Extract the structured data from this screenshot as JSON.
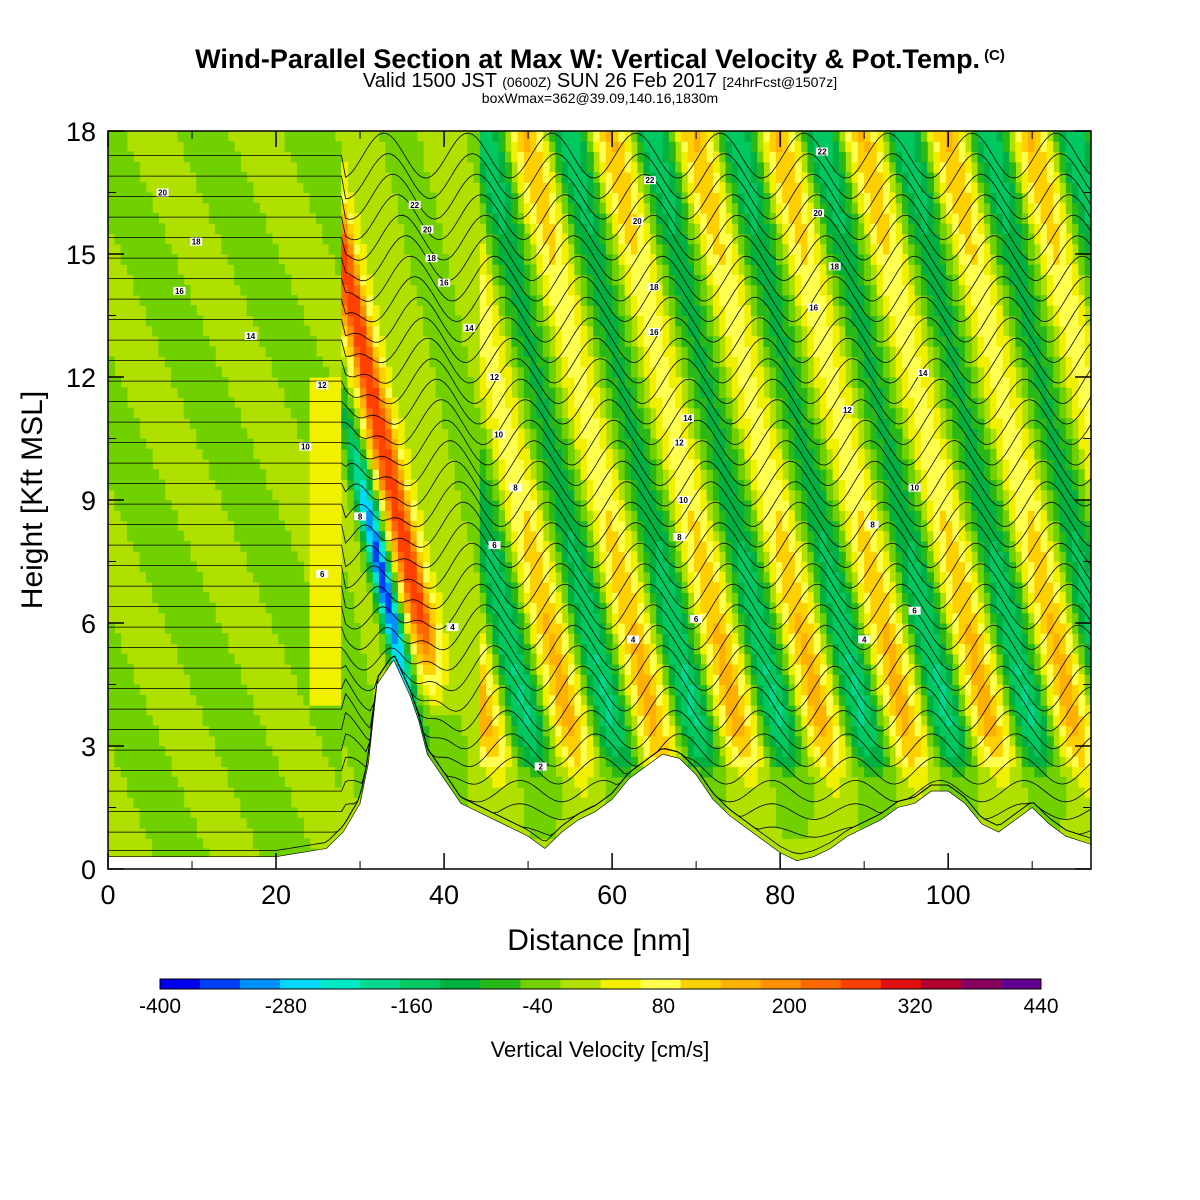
{
  "header": {
    "title": "Wind-Parallel Section at Max W: Vertical Velocity & Pot.Temp.",
    "copyright": "(C)",
    "valid_prefix": "Valid 1500 JST",
    "valid_zulu": "(0600Z)",
    "valid_date": "SUN 26 Feb 2017",
    "forecast": "[24hrFcst@1507z]",
    "box_info": "boxWmax=362@39.09,140.16,1830m"
  },
  "colorbar": {
    "title": "Vertical Velocity [cm/s]",
    "labels": [
      "-400",
      "-280",
      "-160",
      "-40",
      "80",
      "200",
      "320",
      "440"
    ],
    "colors": [
      "#0000f0",
      "#0040ff",
      "#0090ff",
      "#00d8ff",
      "#00e8c8",
      "#00d890",
      "#00c860",
      "#00b040",
      "#28b818",
      "#70d000",
      "#b0e000",
      "#f0f000",
      "#ffff50",
      "#ffd000",
      "#ffb000",
      "#ff9000",
      "#ff6800",
      "#ff4000",
      "#e01010",
      "#b00030",
      "#880060",
      "#600090"
    ]
  },
  "chart_data": {
    "type": "heatmap",
    "xlabel": "Distance [nm]",
    "ylabel": "Height [Kft MSL]",
    "xlim": [
      0,
      117
    ],
    "ylim": [
      0,
      18
    ],
    "x_ticks": [
      "0",
      "20",
      "40",
      "60",
      "80",
      "100"
    ],
    "y_ticks": [
      "0",
      "3",
      "6",
      "9",
      "12",
      "15",
      "18"
    ],
    "field": "Vertical Velocity (cm/s), filled contours",
    "contour_field": "Potential temperature (C), line contours",
    "wave_crests_x_nm": [
      38,
      47,
      56,
      66,
      76,
      86,
      96,
      106
    ],
    "max_updraft_cm_s": 362,
    "min_downdraft_cm_s": -380,
    "terrain_profile": {
      "x": [
        0,
        20,
        26,
        28,
        30,
        31,
        32,
        34,
        36,
        37,
        38,
        40,
        42,
        44,
        46,
        48,
        50,
        52,
        54,
        56,
        58,
        60,
        62,
        64,
        66,
        68,
        70,
        72,
        74,
        76,
        78,
        80,
        82,
        84,
        86,
        88,
        90,
        92,
        94,
        96,
        98,
        100,
        102,
        104,
        106,
        108,
        110,
        112,
        114,
        117
      ],
      "y": [
        0.3,
        0.3,
        0.5,
        0.9,
        1.6,
        2.6,
        4.5,
        5.1,
        4.2,
        3.6,
        2.8,
        2.2,
        1.6,
        1.4,
        1.2,
        1.0,
        0.8,
        0.5,
        0.9,
        1.2,
        1.4,
        1.7,
        2.2,
        2.5,
        2.8,
        2.7,
        2.3,
        1.7,
        1.3,
        1.0,
        0.7,
        0.4,
        0.2,
        0.3,
        0.5,
        0.8,
        1.0,
        1.2,
        1.5,
        1.6,
        1.9,
        1.9,
        1.6,
        1.1,
        0.9,
        1.2,
        1.5,
        1.1,
        0.8,
        0.6
      ]
    },
    "contour_labels": [
      {
        "text": "20",
        "x": 6.5,
        "y": 16.5
      },
      {
        "text": "18",
        "x": 10.5,
        "y": 15.3
      },
      {
        "text": "16",
        "x": 8.5,
        "y": 14.1
      },
      {
        "text": "14",
        "x": 17.0,
        "y": 13.0
      },
      {
        "text": "12",
        "x": 25.5,
        "y": 11.8
      },
      {
        "text": "10",
        "x": 23.5,
        "y": 10.3
      },
      {
        "text": "8",
        "x": 30.0,
        "y": 8.6
      },
      {
        "text": "6",
        "x": 25.5,
        "y": 7.2
      },
      {
        "text": "4",
        "x": 41.0,
        "y": 5.9
      },
      {
        "text": "22",
        "x": 36.5,
        "y": 16.2
      },
      {
        "text": "20",
        "x": 38.0,
        "y": 15.6
      },
      {
        "text": "18",
        "x": 38.5,
        "y": 14.9
      },
      {
        "text": "16",
        "x": 40.0,
        "y": 14.3
      },
      {
        "text": "14",
        "x": 43.0,
        "y": 13.2
      },
      {
        "text": "12",
        "x": 46.0,
        "y": 12.0
      },
      {
        "text": "10",
        "x": 46.5,
        "y": 10.6
      },
      {
        "text": "8",
        "x": 48.5,
        "y": 9.3
      },
      {
        "text": "6",
        "x": 46.0,
        "y": 7.9
      },
      {
        "text": "4",
        "x": 62.5,
        "y": 5.6
      },
      {
        "text": "2",
        "x": 51.5,
        "y": 2.5
      },
      {
        "text": "22",
        "x": 64.5,
        "y": 16.8
      },
      {
        "text": "20",
        "x": 63.0,
        "y": 15.8
      },
      {
        "text": "18",
        "x": 65.0,
        "y": 14.2
      },
      {
        "text": "16",
        "x": 65.0,
        "y": 13.1
      },
      {
        "text": "14",
        "x": 69.0,
        "y": 11.0
      },
      {
        "text": "12",
        "x": 68.0,
        "y": 10.4
      },
      {
        "text": "10",
        "x": 68.5,
        "y": 9.0
      },
      {
        "text": "8",
        "x": 68.0,
        "y": 8.1
      },
      {
        "text": "6",
        "x": 70.0,
        "y": 6.1
      },
      {
        "text": "22",
        "x": 85.0,
        "y": 17.5
      },
      {
        "text": "20",
        "x": 84.5,
        "y": 16.0
      },
      {
        "text": "18",
        "x": 86.5,
        "y": 14.7
      },
      {
        "text": "16",
        "x": 84.0,
        "y": 13.7
      },
      {
        "text": "14",
        "x": 97.0,
        "y": 12.1
      },
      {
        "text": "12",
        "x": 88.0,
        "y": 11.2
      },
      {
        "text": "10",
        "x": 96.0,
        "y": 9.3
      },
      {
        "text": "8",
        "x": 91.0,
        "y": 8.4
      },
      {
        "text": "6",
        "x": 96.0,
        "y": 6.3
      },
      {
        "text": "4",
        "x": 90.0,
        "y": 5.6
      }
    ]
  }
}
